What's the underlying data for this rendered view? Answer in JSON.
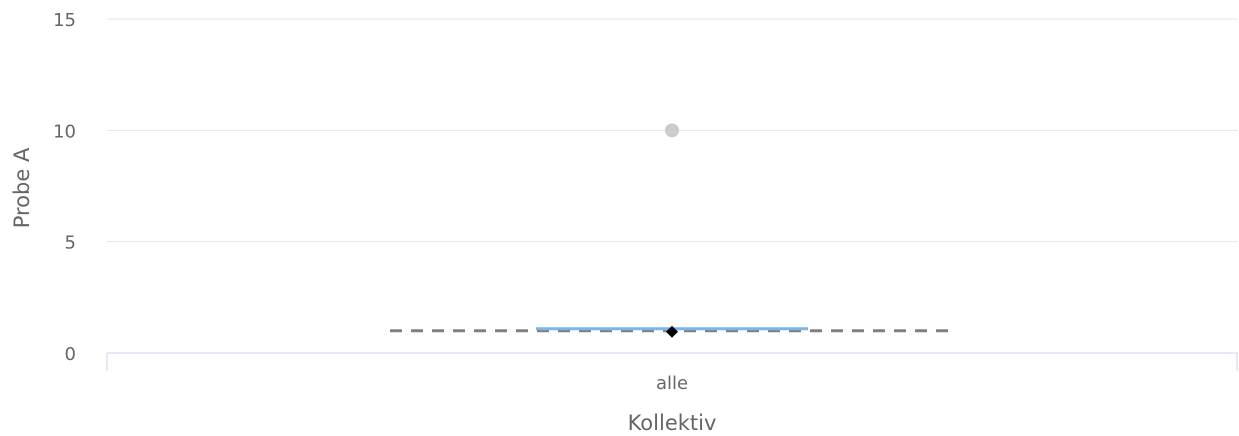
{
  "chart_data": {
    "type": "boxplot",
    "title": "",
    "xlabel": "Kollektiv",
    "ylabel": "Probe A",
    "categories": [
      "alle"
    ],
    "yticks": [
      0,
      5,
      10,
      15
    ],
    "ylim": [
      0,
      15
    ],
    "grid": true,
    "box": {
      "min": 1,
      "q1": 1,
      "median": 1,
      "q3": 1,
      "max": 1,
      "mean": 1
    },
    "outliers": [
      10
    ],
    "reference_line": 1,
    "colors": {
      "box": "#7cb5ec",
      "mean_marker": "#000000",
      "outlier": "#cccccc",
      "reference_line": "#808080",
      "grid": "#e6e6e6",
      "axis_line": "#ccd6eb",
      "text": "#666666"
    }
  }
}
